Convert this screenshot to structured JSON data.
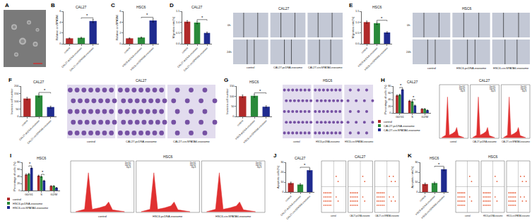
{
  "chart_data": [
    {
      "panel": "B",
      "type": "bar",
      "title": "CAL27",
      "y_label": "Relative circSPATA6",
      "categories": [
        "control",
        "CAL27-pcDNA-exosome",
        "CAL27-circSPATA6-exosome"
      ],
      "values": [
        1.0,
        1.1,
        4.2
      ],
      "errors": [
        0.08,
        0.1,
        0.3
      ],
      "colors": [
        "#b02a2a",
        "#2a8a3a",
        "#1f2b8f"
      ],
      "ylim": [
        0,
        6
      ],
      "yticks": [
        0,
        2,
        4,
        6
      ],
      "significance": [
        {
          "from": 1,
          "to": 2,
          "label": "*"
        }
      ]
    },
    {
      "panel": "C",
      "type": "bar",
      "title": "HSC6",
      "y_label": "Relative circSPATA6",
      "categories": [
        "control",
        "HSC6-pcDNA-exosome",
        "HSC6-circSPATA6-exosome"
      ],
      "values": [
        1.0,
        1.15,
        4.3
      ],
      "errors": [
        0.08,
        0.1,
        0.3
      ],
      "colors": [
        "#b02a2a",
        "#2a8a3a",
        "#1f2b8f"
      ],
      "ylim": [
        0,
        6
      ],
      "yticks": [
        0,
        2,
        4,
        6
      ],
      "significance": [
        {
          "from": 1,
          "to": 2,
          "label": "*"
        }
      ]
    },
    {
      "panel": "D",
      "type": "bar",
      "title": "CAL27",
      "y_label": "Migration rate(%)",
      "categories": [
        "control",
        "CAL27-pcDNA-exosome",
        "CAL27-circSPATA6-exosome"
      ],
      "values": [
        1.02,
        0.98,
        0.5
      ],
      "errors": [
        0.05,
        0.06,
        0.04
      ],
      "colors": [
        "#b02a2a",
        "#2a8a3a",
        "#1f2b8f"
      ],
      "ylim": [
        0,
        1.5
      ],
      "yticks": [
        {
          "value": 0,
          "label": "0.0"
        },
        0.5,
        {
          "value": 1,
          "label": "1.0"
        },
        1.5
      ],
      "significance": [
        {
          "from": 1,
          "to": 2,
          "label": "*"
        }
      ]
    },
    {
      "panel": "E",
      "type": "bar",
      "title": "HSC6",
      "y_label": "Migration rate(%)",
      "categories": [
        "control",
        "HSC6-pcDNA-exosome",
        "HSC6-circSPATA6-exosome"
      ],
      "values": [
        1.0,
        0.95,
        0.52
      ],
      "errors": [
        0.05,
        0.06,
        0.04
      ],
      "colors": [
        "#b02a2a",
        "#2a8a3a",
        "#1f2b8f"
      ],
      "ylim": [
        0,
        1.5
      ],
      "yticks": [
        {
          "value": 0,
          "label": "0.0"
        },
        0.5,
        {
          "value": 1,
          "label": "1.0"
        },
        1.5
      ],
      "significance": [
        {
          "from": 1,
          "to": 2,
          "label": "*"
        }
      ]
    },
    {
      "panel": "F",
      "type": "bar",
      "title": "CAL27",
      "y_label": "Invasion cell number",
      "categories": [
        "control",
        "CAL27-pcDNA-exosome",
        "CAL27-circSPATA6-exosome"
      ],
      "values": [
        118,
        138,
        62
      ],
      "errors": [
        8,
        10,
        6
      ],
      "colors": [
        "#b02a2a",
        "#2a8a3a",
        "#1f2b8f"
      ],
      "ylim": [
        0,
        200
      ],
      "yticks": [
        0,
        50,
        100,
        150,
        200
      ],
      "significance": [
        {
          "from": 1,
          "to": 2,
          "label": "*"
        }
      ]
    },
    {
      "panel": "G",
      "type": "bar",
      "title": "HSC6",
      "y_label": "Invasion cell number",
      "categories": [
        "control",
        "HSC6-pcDNA-exosome",
        "HSC6-circSPATA6-exosome"
      ],
      "values": [
        100,
        102,
        48
      ],
      "errors": [
        6,
        7,
        5
      ],
      "colors": [
        "#b02a2a",
        "#2a8a3a",
        "#1f2b8f"
      ],
      "ylim": [
        0,
        150
      ],
      "yticks": [
        0,
        50,
        100,
        150
      ],
      "significance": [
        {
          "from": 1,
          "to": 2,
          "label": "*"
        }
      ]
    },
    {
      "panel": "H",
      "type": "bar",
      "title": "CAL27",
      "y_label": "Percentage of cells (%)",
      "categories": [
        "G0/G1",
        "S",
        "G2/M"
      ],
      "series": [
        {
          "name": "control",
          "color": "#b02a2a",
          "values": [
            52,
            36,
            12
          ],
          "errors": [
            2,
            2,
            1
          ]
        },
        {
          "name": "CAL27-pcDNA-exosome",
          "color": "#2a8a3a",
          "values": [
            54,
            34,
            12
          ],
          "errors": [
            2,
            2,
            1
          ]
        },
        {
          "name": "CAL27-circSPATA6-exosome",
          "color": "#1f2b8f",
          "values": [
            70,
            22,
            8
          ],
          "errors": [
            2,
            1.5,
            1
          ]
        }
      ],
      "ylim": [
        0,
        80
      ],
      "yticks": [
        0,
        20,
        40,
        60,
        80
      ],
      "significance": [
        {
          "category": 0,
          "from": 1,
          "to": 2,
          "label": "*"
        },
        {
          "category": 1,
          "from": 1,
          "to": 2,
          "label": "*"
        }
      ]
    },
    {
      "panel": "I",
      "type": "bar",
      "title": "HSC6",
      "y_label": "Percentage of cells (%)",
      "categories": [
        "G0/G1",
        "S",
        "G2/M"
      ],
      "series": [
        {
          "name": "control",
          "color": "#b02a2a",
          "values": [
            45,
            42,
            13
          ],
          "errors": [
            2,
            2,
            1
          ]
        },
        {
          "name": "HSC6-pcDNA-exosome",
          "color": "#2a8a3a",
          "values": [
            47,
            40,
            13
          ],
          "errors": [
            2,
            2,
            1
          ]
        },
        {
          "name": "HSC6-circSPATA6-exosome",
          "color": "#1f2b8f",
          "values": [
            64,
            28,
            8
          ],
          "errors": [
            2,
            1.5,
            1
          ]
        }
      ],
      "ylim": [
        0,
        80
      ],
      "yticks": [
        0,
        20,
        40,
        60,
        80
      ],
      "significance": [
        {
          "category": 0,
          "from": 1,
          "to": 2,
          "label": "*"
        },
        {
          "category": 1,
          "from": 1,
          "to": 2,
          "label": "*"
        }
      ]
    },
    {
      "panel": "J",
      "type": "bar",
      "title": "CAL27",
      "y_label": "Apoptotic cells(%)",
      "categories": [
        "control",
        "CAL27-pcDNA-exosome",
        "CAL27-circSPATA6-exosome"
      ],
      "values": [
        9,
        7.5,
        22
      ],
      "errors": [
        1,
        1,
        1.5
      ],
      "colors": [
        "#b02a2a",
        "#2a8a3a",
        "#1f2b8f"
      ],
      "ylim": [
        0,
        30
      ],
      "yticks": [
        0,
        10,
        20,
        30
      ],
      "significance": [
        {
          "from": 1,
          "to": 2,
          "label": "*"
        }
      ]
    },
    {
      "panel": "K",
      "type": "bar",
      "title": "HSC6",
      "y_label": "Apoptotic rate(%)",
      "categories": [
        "control",
        "HSC6-pcDNA-exosome",
        "HSC6-circSPATA6-exosome"
      ],
      "values": [
        8,
        9,
        23
      ],
      "errors": [
        1,
        1,
        1.5
      ],
      "colors": [
        "#b02a2a",
        "#2a8a3a",
        "#1f2b8f"
      ],
      "ylim": [
        0,
        30
      ],
      "yticks": [
        0,
        10,
        20,
        30
      ],
      "significance": [
        {
          "from": 1,
          "to": 2,
          "label": "*"
        }
      ]
    }
  ],
  "image_panels": [
    {
      "panel": "A",
      "kind": "tem"
    },
    {
      "panel": "D",
      "kind": "wound",
      "title": "CAL27",
      "rows": [
        "0h",
        "24h"
      ],
      "columns": [
        "control",
        "CAL27-pcDNA-exosome",
        "CAL27-circSPATA6-exosome"
      ]
    },
    {
      "panel": "E",
      "kind": "wound",
      "title": "HSC6",
      "rows": [
        "0h",
        "24h"
      ],
      "columns": [
        "control",
        "HSC6-pcDNA-exosome",
        "HSC6-circSPATA6-exosome"
      ]
    },
    {
      "panel": "F",
      "kind": "transwell",
      "title": "CAL27",
      "columns": [
        "control",
        "CAL27-pcDNA-exosome",
        "CAL27-circSPATA6-exosome"
      ]
    },
    {
      "panel": "G",
      "kind": "transwell",
      "title": "HSC6",
      "columns": [
        "control",
        "HSC6-pcDNA-exosome",
        "HSC6-circSPATA6-exosome"
      ]
    },
    {
      "panel": "H",
      "kind": "histogram",
      "title": "CAL27",
      "columns": [
        "control",
        "CAL27-pcDNA-exosome",
        "CAL27-circSPATA6-exosome"
      ],
      "legend_items": [
        "Dip G1",
        "Dip G2",
        "Dip S"
      ]
    },
    {
      "panel": "I",
      "kind": "histogram",
      "title": "HSC6",
      "columns": [
        "control",
        "HSC6-pcDNA-exosome",
        "HSC6-circSPATA6-exosome"
      ],
      "legend_items": [
        "Dip G1",
        "Dip G2",
        "Dip S"
      ]
    },
    {
      "panel": "J",
      "kind": "scatter",
      "title": "CAL27",
      "columns": [
        "control",
        "CAL27-pcDNA-exosome",
        "CAL27-circSPATA6-exosome"
      ]
    },
    {
      "panel": "K",
      "kind": "scatter",
      "title": "HSC6",
      "columns": [
        "control",
        "HSC6-pcDNA-exosome",
        "HSC6-circSPATA6-exosome"
      ]
    }
  ]
}
